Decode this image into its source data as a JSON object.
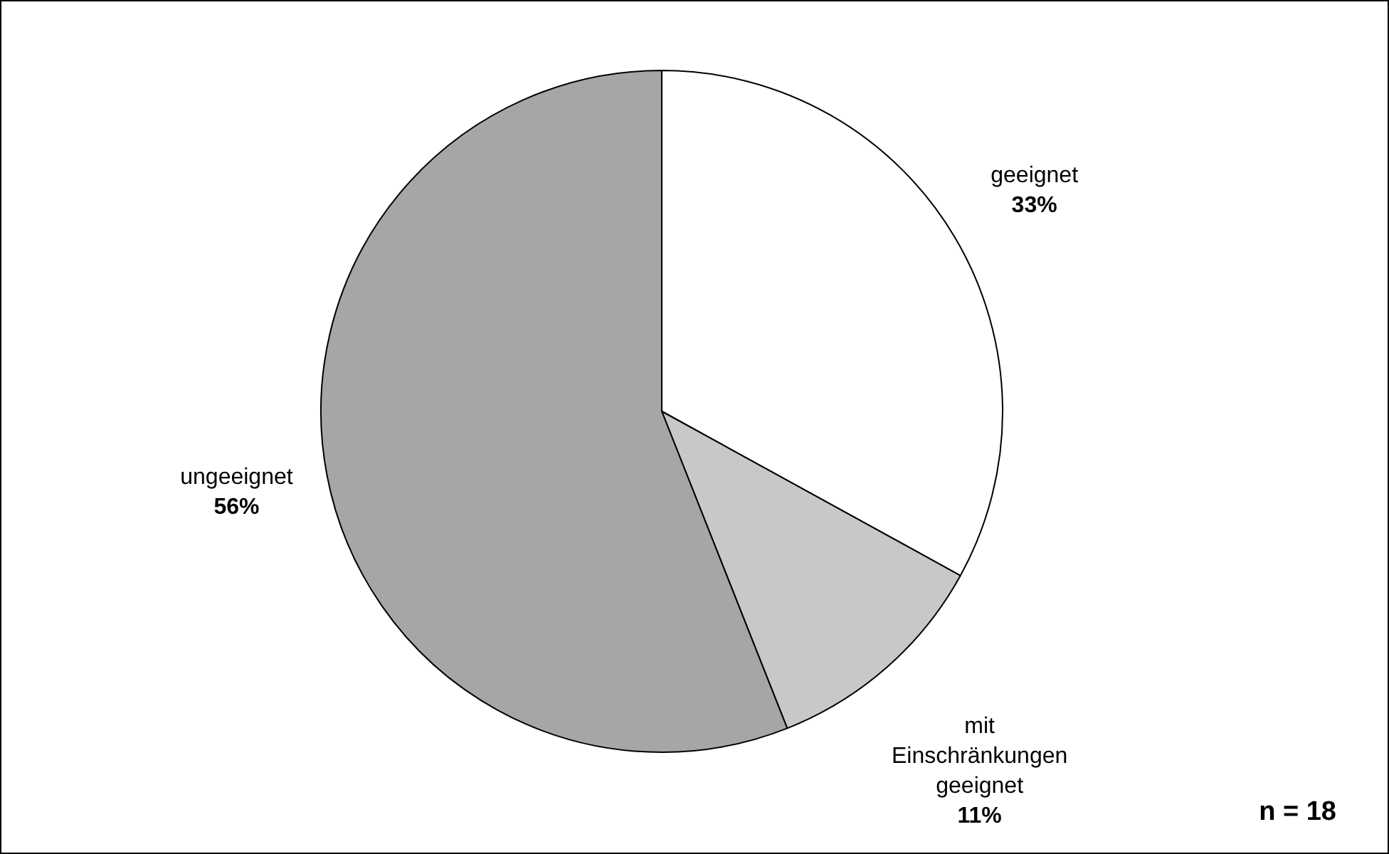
{
  "chart_data": {
    "type": "pie",
    "categories": [
      "geeignet",
      "mit Einschränkungen geeignet",
      "ungeeignet"
    ],
    "values": [
      33,
      11,
      56
    ],
    "colors": [
      "#ffffff",
      "#c8c8c8",
      "#a6a6a6"
    ],
    "value_labels": [
      "33%",
      "11%",
      "56%"
    ],
    "legend": false,
    "annotations": [
      "n = 18"
    ]
  }
}
